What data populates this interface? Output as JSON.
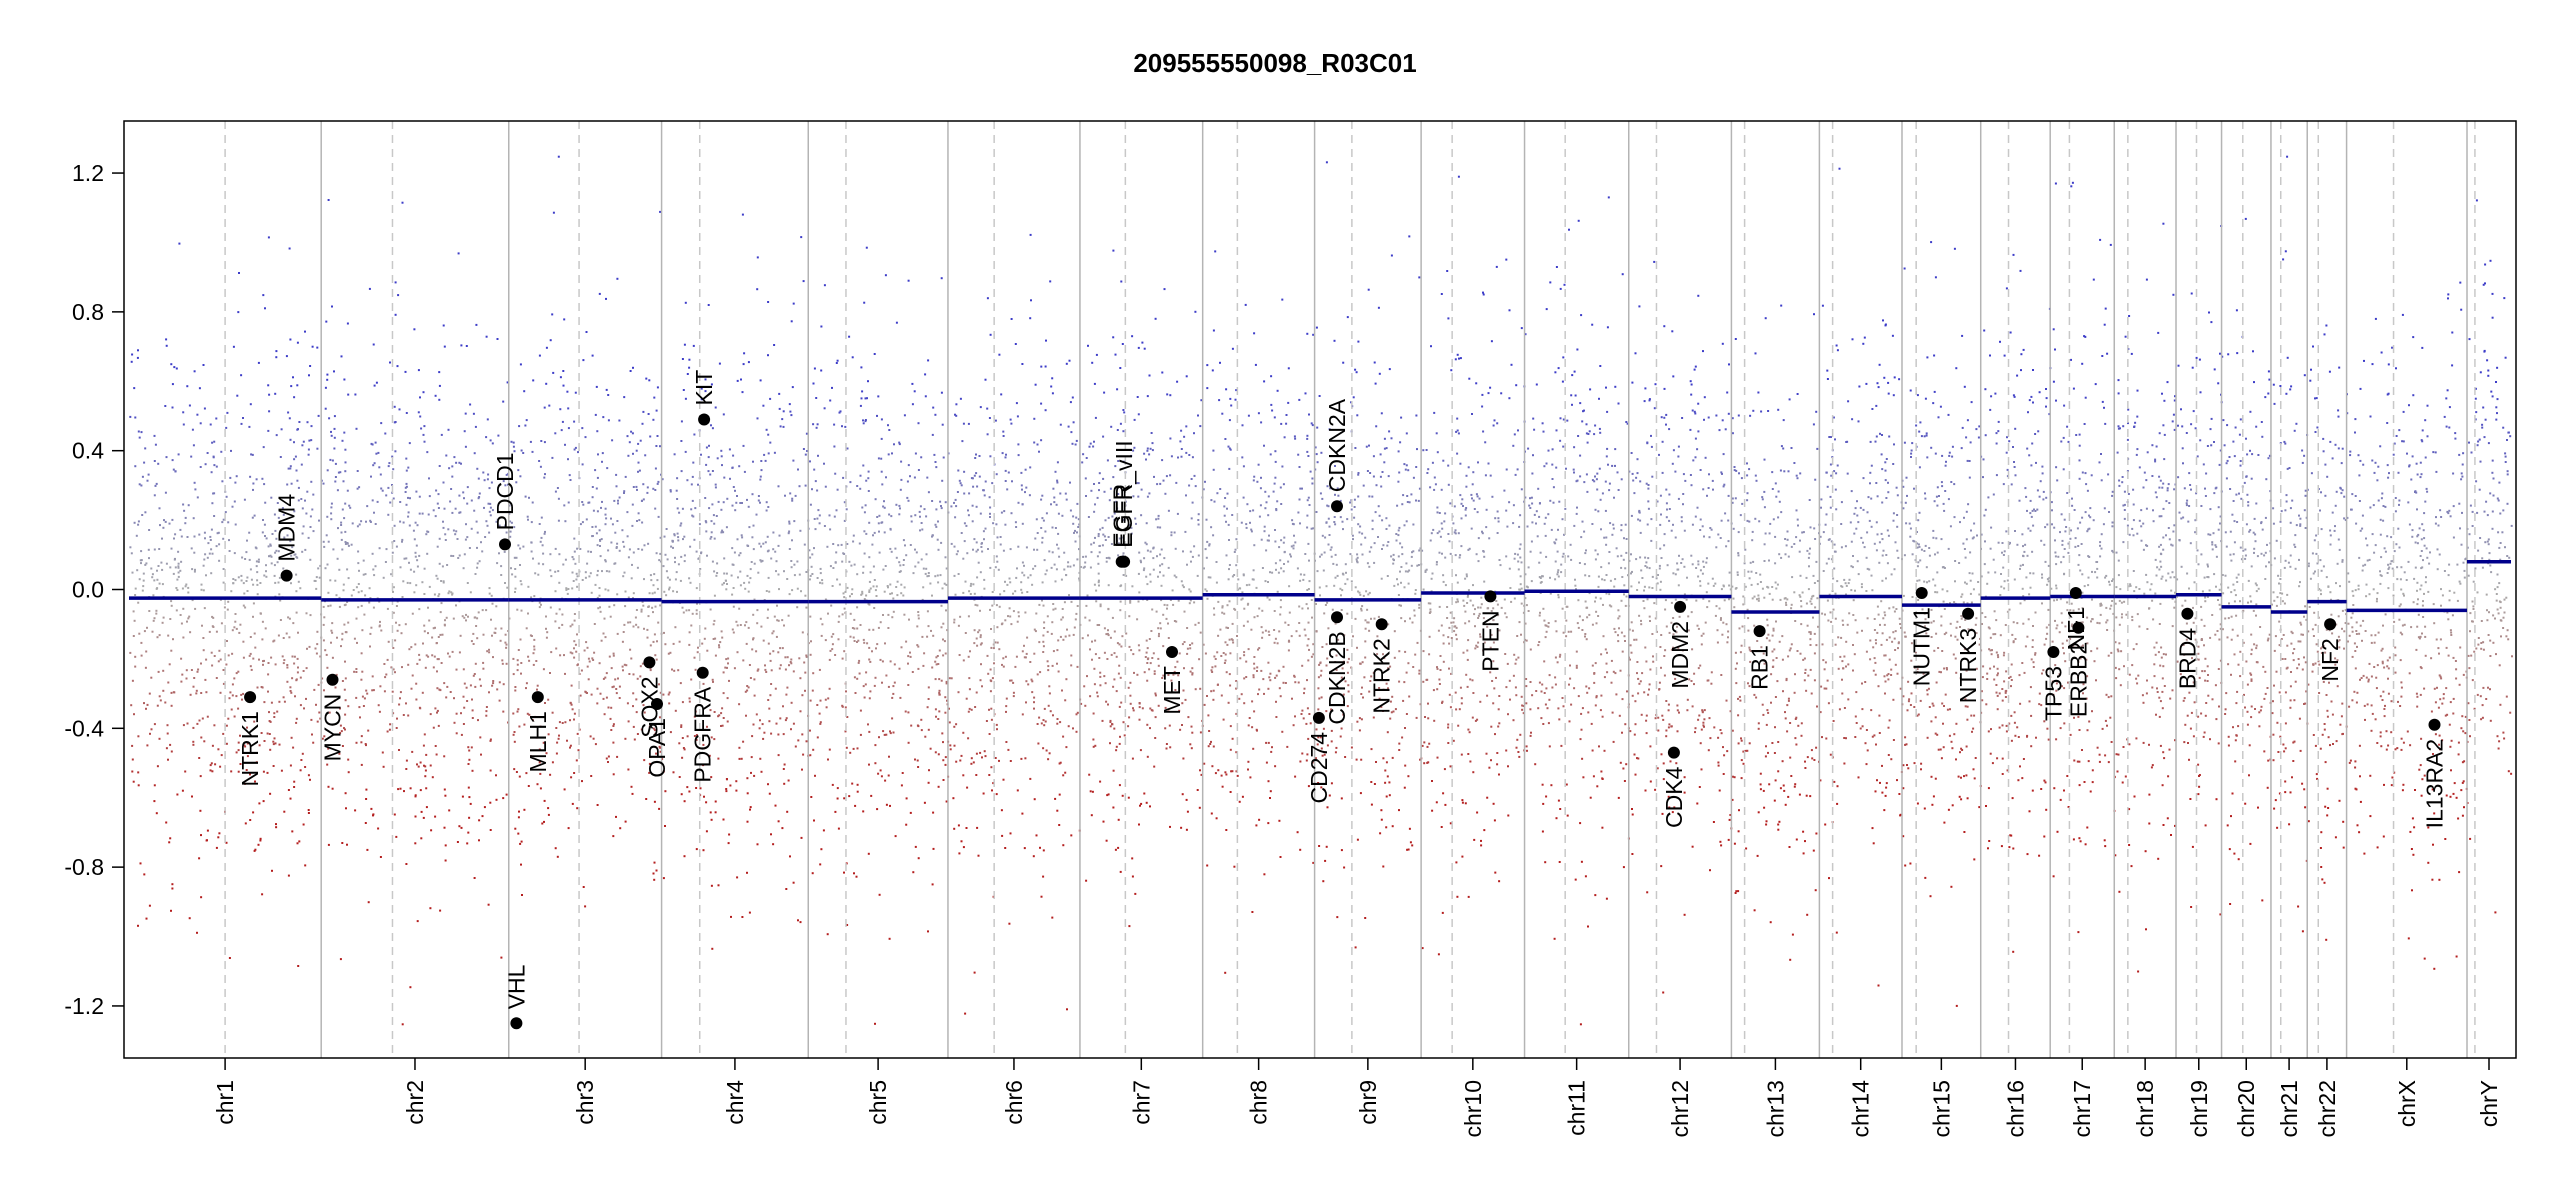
{
  "chart_data": {
    "type": "scatter",
    "title": "209555550098_R03C01",
    "xlabel": "",
    "ylabel": "",
    "ylim": [
      -1.35,
      1.35
    ],
    "y_ticks": [
      "-1.2",
      "-0.8",
      "-0.4",
      "0.0",
      "0.4",
      "0.8",
      "1.2"
    ],
    "colors": {
      "gain": "#3c3cc8",
      "loss": "#b41e1e",
      "neutral": "#aaaaaa",
      "segment": "#00008b",
      "gene": "#000000"
    },
    "chromosomes": [
      {
        "name": "chr1",
        "size": 249,
        "centromere": 0.5,
        "segment": -0.025
      },
      {
        "name": "chr2",
        "size": 243,
        "centromere": 0.38,
        "segment": -0.03
      },
      {
        "name": "chr3",
        "size": 198,
        "centromere": 0.46,
        "segment": -0.03
      },
      {
        "name": "chr4",
        "size": 190,
        "centromere": 0.26,
        "segment": -0.035
      },
      {
        "name": "chr5",
        "size": 181,
        "centromere": 0.27,
        "segment": -0.035
      },
      {
        "name": "chr6",
        "size": 171,
        "centromere": 0.35,
        "segment": -0.025
      },
      {
        "name": "chr7",
        "size": 159,
        "centromere": 0.37,
        "segment": -0.025
      },
      {
        "name": "chr8",
        "size": 145,
        "centromere": 0.31,
        "segment": -0.015
      },
      {
        "name": "chr9",
        "size": 138,
        "centromere": 0.35,
        "segment": -0.03
      },
      {
        "name": "chr10",
        "size": 134,
        "centromere": 0.3,
        "segment": -0.01
      },
      {
        "name": "chr11",
        "size": 135,
        "centromere": 0.39,
        "segment": -0.005
      },
      {
        "name": "chr12",
        "size": 133,
        "centromere": 0.27,
        "segment": -0.02
      },
      {
        "name": "chr13",
        "size": 114,
        "centromere": 0.15,
        "segment": -0.065
      },
      {
        "name": "chr14",
        "size": 107,
        "centromere": 0.16,
        "segment": -0.02
      },
      {
        "name": "chr15",
        "size": 102,
        "centromere": 0.18,
        "segment": -0.045
      },
      {
        "name": "chr16",
        "size": 90,
        "centromere": 0.4,
        "segment": -0.025
      },
      {
        "name": "chr17",
        "size": 83,
        "centromere": 0.3,
        "segment": -0.02
      },
      {
        "name": "chr18",
        "size": 80,
        "centromere": 0.22,
        "segment": -0.02
      },
      {
        "name": "chr19",
        "size": 59,
        "centromere": 0.45,
        "segment": -0.015
      },
      {
        "name": "chr20",
        "size": 64,
        "centromere": 0.43,
        "segment": -0.05
      },
      {
        "name": "chr21",
        "size": 47,
        "centromere": 0.27,
        "segment": -0.065
      },
      {
        "name": "chr22",
        "size": 51,
        "centromere": 0.28,
        "segment": -0.035
      },
      {
        "name": "chrX",
        "size": 156,
        "centromere": 0.39,
        "segment": -0.06
      },
      {
        "name": "chrY",
        "size": 57,
        "centromere": 0.18,
        "segment": 0.08
      }
    ],
    "genes": [
      {
        "name": "NTRK1",
        "chrom": "chr1",
        "pos": 0.63,
        "value": -0.31,
        "label_side": "below"
      },
      {
        "name": "MDM4",
        "chrom": "chr1",
        "pos": 0.82,
        "value": 0.04,
        "label_side": "above"
      },
      {
        "name": "MYCN",
        "chrom": "chr2",
        "pos": 0.06,
        "value": -0.26,
        "label_side": "below"
      },
      {
        "name": "PDCD1",
        "chrom": "chr2",
        "pos": 0.98,
        "value": 0.13,
        "label_side": "above"
      },
      {
        "name": "VHL",
        "chrom": "chr3",
        "pos": 0.05,
        "value": -1.25,
        "label_side": "above"
      },
      {
        "name": "MLH1",
        "chrom": "chr3",
        "pos": 0.19,
        "value": -0.31,
        "label_side": "below"
      },
      {
        "name": "SOX2",
        "chrom": "chr3",
        "pos": 0.92,
        "value": -0.21,
        "label_side": "below"
      },
      {
        "name": "OPA1",
        "chrom": "chr3",
        "pos": 0.97,
        "value": -0.33,
        "label_side": "below"
      },
      {
        "name": "KIT",
        "chrom": "chr4",
        "pos": 0.29,
        "value": 0.49,
        "label_side": "above"
      },
      {
        "name": "PDGFRA",
        "chrom": "chr4",
        "pos": 0.28,
        "value": -0.24,
        "label_side": "below"
      },
      {
        "name": "EGFR",
        "chrom": "chr7",
        "pos": 0.34,
        "value": 0.08,
        "label_side": "above"
      },
      {
        "name": "EGFR_vIII",
        "chrom": "chr7",
        "pos": 0.36,
        "value": 0.08,
        "label_side": "above"
      },
      {
        "name": "MET",
        "chrom": "chr7",
        "pos": 0.75,
        "value": -0.18,
        "label_side": "below"
      },
      {
        "name": "CDKN2A",
        "chrom": "chr9",
        "pos": 0.21,
        "value": 0.24,
        "label_side": "above"
      },
      {
        "name": "CDKN2B",
        "chrom": "chr9",
        "pos": 0.21,
        "value": -0.08,
        "label_side": "below"
      },
      {
        "name": "CD274",
        "chrom": "chr9",
        "pos": 0.04,
        "value": -0.37,
        "label_side": "below"
      },
      {
        "name": "NTRK2",
        "chrom": "chr9",
        "pos": 0.63,
        "value": -0.1,
        "label_side": "below"
      },
      {
        "name": "PTEN",
        "chrom": "chr10",
        "pos": 0.67,
        "value": -0.02,
        "label_side": "below"
      },
      {
        "name": "MDM2",
        "chrom": "chr12",
        "pos": 0.5,
        "value": -0.05,
        "label_side": "below"
      },
      {
        "name": "CDK4",
        "chrom": "chr12",
        "pos": 0.44,
        "value": -0.47,
        "label_side": "below"
      },
      {
        "name": "RB1",
        "chrom": "chr13",
        "pos": 0.32,
        "value": -0.12,
        "label_side": "below"
      },
      {
        "name": "NUTM1",
        "chrom": "chr15",
        "pos": 0.25,
        "value": -0.01,
        "label_side": "below"
      },
      {
        "name": "NTRK3",
        "chrom": "chr15",
        "pos": 0.84,
        "value": -0.07,
        "label_side": "below"
      },
      {
        "name": "TP53",
        "chrom": "chr17",
        "pos": 0.05,
        "value": -0.18,
        "label_side": "below"
      },
      {
        "name": "ERBB2",
        "chrom": "chr17",
        "pos": 0.44,
        "value": -0.11,
        "label_side": "below"
      },
      {
        "name": "NF1",
        "chrom": "chr17",
        "pos": 0.4,
        "value": -0.01,
        "label_side": "below"
      },
      {
        "name": "BRD4",
        "chrom": "chr19",
        "pos": 0.25,
        "value": -0.07,
        "label_side": "below"
      },
      {
        "name": "NF2",
        "chrom": "chr22",
        "pos": 0.58,
        "value": -0.1,
        "label_side": "below"
      },
      {
        "name": "IL13RA2",
        "chrom": "chrX",
        "pos": 0.73,
        "value": -0.39,
        "label_side": "below"
      }
    ]
  }
}
